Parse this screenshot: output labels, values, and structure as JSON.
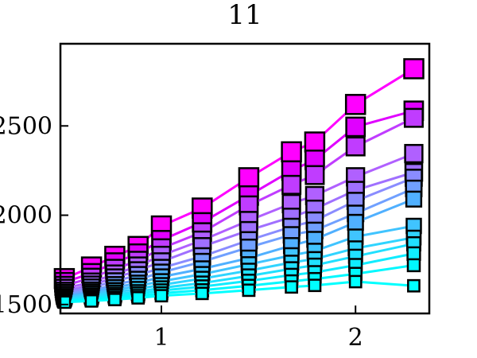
{
  "chart_data": {
    "type": "line",
    "title": "11",
    "xlabel": "",
    "ylabel": "",
    "xlim": [
      0.48,
      2.38
    ],
    "ylim": [
      1450,
      2960
    ],
    "x_ticks": [
      {
        "value": 1,
        "label": "1"
      },
      {
        "value": 2,
        "label": "2"
      }
    ],
    "y_ticks": [
      {
        "value": 1500,
        "label": "1500"
      },
      {
        "value": 2000,
        "label": "2000"
      },
      {
        "value": 2500,
        "label": "2500"
      }
    ],
    "grid": false,
    "legend": "none",
    "x": [
      0.5,
      0.64,
      0.76,
      0.88,
      1.0,
      1.21,
      1.45,
      1.67,
      1.79,
      2.0,
      2.3
    ],
    "series": [
      {
        "color": "#ff00ff",
        "values": [
          1645,
          1710,
          1770,
          1825,
          1940,
          2040,
          2210,
          2355,
          2410,
          2620,
          2820
        ]
      },
      {
        "color": "#e000ff",
        "values": [
          1625,
          1675,
          1735,
          1785,
          1860,
          1960,
          2110,
          2250,
          2310,
          2495,
          2585
        ]
      },
      {
        "color": "#c03cff",
        "values": [
          1605,
          1650,
          1700,
          1745,
          1815,
          1905,
          2055,
          2170,
          2225,
          2385,
          2545
        ]
      },
      {
        "color": "#b060ff",
        "values": [
          1590,
          1625,
          1670,
          1715,
          1775,
          1860,
          1970,
          2065,
          2110,
          2215,
          2345
        ]
      },
      {
        "color": "#a070ff",
        "values": [
          1575,
          1610,
          1650,
          1690,
          1740,
          1825,
          1915,
          1990,
          2035,
          2140,
          2240
        ]
      },
      {
        "color": "#8a8cff",
        "values": [
          1565,
          1595,
          1630,
          1665,
          1705,
          1770,
          1860,
          1935,
          1970,
          2080,
          2210
        ]
      },
      {
        "color": "#70a0ff",
        "values": [
          1555,
          1580,
          1610,
          1640,
          1680,
          1740,
          1820,
          1890,
          1915,
          2010,
          2150
        ]
      },
      {
        "color": "#50b0ff",
        "values": [
          1545,
          1570,
          1595,
          1620,
          1655,
          1700,
          1760,
          1830,
          1865,
          1960,
          2090
        ]
      },
      {
        "color": "#40c4ff",
        "values": [
          1540,
          1560,
          1580,
          1605,
          1630,
          1670,
          1725,
          1775,
          1800,
          1880,
          1940
        ]
      },
      {
        "color": "#30d4ff",
        "values": [
          1532,
          1550,
          1568,
          1588,
          1610,
          1645,
          1690,
          1735,
          1755,
          1815,
          1875
        ]
      },
      {
        "color": "#20e0ff",
        "values": [
          1526,
          1541,
          1557,
          1572,
          1593,
          1620,
          1660,
          1700,
          1720,
          1770,
          1840
        ]
      },
      {
        "color": "#10ecff",
        "values": [
          1521,
          1533,
          1547,
          1560,
          1578,
          1600,
          1632,
          1665,
          1680,
          1720,
          1785
        ]
      },
      {
        "color": "#00f8ff",
        "values": [
          1517,
          1526,
          1537,
          1548,
          1563,
          1580,
          1605,
          1630,
          1643,
          1672,
          1720
        ]
      },
      {
        "color": "#00ffff",
        "values": [
          1513,
          1520,
          1528,
          1537,
          1549,
          1562,
          1580,
          1598,
          1607,
          1628,
          1605
        ]
      }
    ]
  }
}
